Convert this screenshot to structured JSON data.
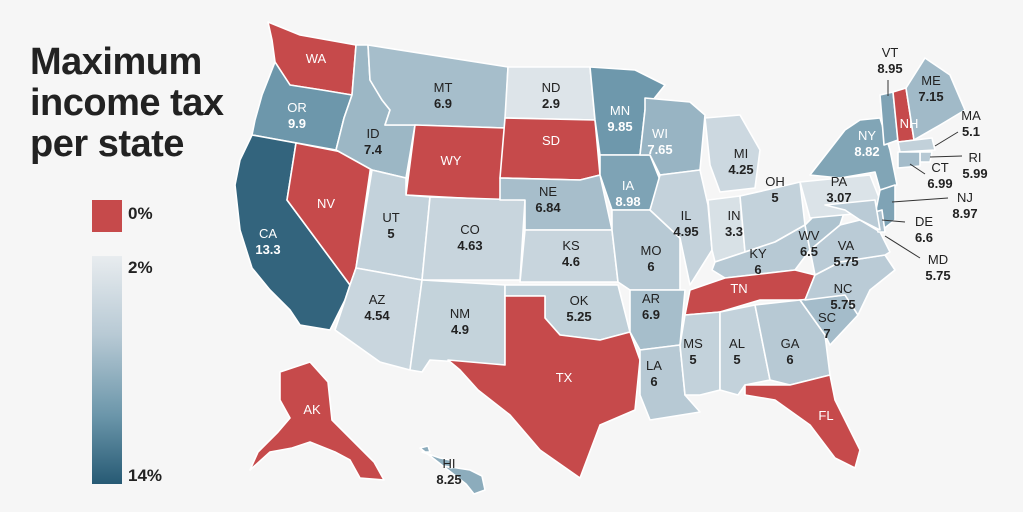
{
  "title": {
    "line1": "Maximum",
    "line2": "income tax",
    "line3": "per state"
  },
  "legend": {
    "zero_label": "0%",
    "min_label": "2%",
    "max_label": "14%",
    "zero_color": "#c64a4b",
    "scale_colors": [
      "#e8ecef",
      "#b7c9d4",
      "#6b96aa",
      "#275a74"
    ]
  },
  "colors": {
    "no_tax": "#c64a4b",
    "background": "#f6f6f6"
  },
  "states": {
    "WA": {
      "abbr": "WA",
      "value": "0"
    },
    "OR": {
      "abbr": "OR",
      "value": "9.9"
    },
    "CA": {
      "abbr": "CA",
      "value": "13.3"
    },
    "NV": {
      "abbr": "NV",
      "value": "0"
    },
    "ID": {
      "abbr": "ID",
      "value": "7.4"
    },
    "MT": {
      "abbr": "MT",
      "value": "6.9"
    },
    "WY": {
      "abbr": "WY",
      "value": "0"
    },
    "UT": {
      "abbr": "UT",
      "value": "5"
    },
    "AZ": {
      "abbr": "AZ",
      "value": "4.54"
    },
    "CO": {
      "abbr": "CO",
      "value": "4.63"
    },
    "NM": {
      "abbr": "NM",
      "value": "4.9"
    },
    "ND": {
      "abbr": "ND",
      "value": "2.9"
    },
    "SD": {
      "abbr": "SD",
      "value": "0"
    },
    "NE": {
      "abbr": "NE",
      "value": "6.84"
    },
    "KS": {
      "abbr": "KS",
      "value": "4.6"
    },
    "OK": {
      "abbr": "OK",
      "value": "5.25"
    },
    "TX": {
      "abbr": "TX",
      "value": "0"
    },
    "MN": {
      "abbr": "MN",
      "value": "9.85"
    },
    "IA": {
      "abbr": "IA",
      "value": "8.98"
    },
    "MO": {
      "abbr": "MO",
      "value": "6"
    },
    "AR": {
      "abbr": "AR",
      "value": "6.9"
    },
    "LA": {
      "abbr": "LA",
      "value": "6"
    },
    "WI": {
      "abbr": "WI",
      "value": "7.65"
    },
    "IL": {
      "abbr": "IL",
      "value": "4.95"
    },
    "MI": {
      "abbr": "MI",
      "value": "4.25"
    },
    "IN": {
      "abbr": "IN",
      "value": "3.3"
    },
    "OH": {
      "abbr": "OH",
      "value": "5"
    },
    "KY": {
      "abbr": "KY",
      "value": "6"
    },
    "TN": {
      "abbr": "TN",
      "value": "0"
    },
    "MS": {
      "abbr": "MS",
      "value": "5"
    },
    "AL": {
      "abbr": "AL",
      "value": "5"
    },
    "GA": {
      "abbr": "GA",
      "value": "6"
    },
    "FL": {
      "abbr": "FL",
      "value": "0"
    },
    "SC": {
      "abbr": "SC",
      "value": "7"
    },
    "NC": {
      "abbr": "NC",
      "value": "5.75"
    },
    "VA": {
      "abbr": "VA",
      "value": "5.75"
    },
    "WV": {
      "abbr": "WV",
      "value": "6.5"
    },
    "PA": {
      "abbr": "PA",
      "value": "3.07"
    },
    "NY": {
      "abbr": "NY",
      "value": "8.82"
    },
    "VT": {
      "abbr": "VT",
      "value": "8.95"
    },
    "NH": {
      "abbr": "NH",
      "value": "0"
    },
    "ME": {
      "abbr": "ME",
      "value": "7.15"
    },
    "MA": {
      "abbr": "MA",
      "value": "5.1"
    },
    "RI": {
      "abbr": "RI",
      "value": "5.99"
    },
    "CT": {
      "abbr": "CT",
      "value": "6.99"
    },
    "NJ": {
      "abbr": "NJ",
      "value": "8.97"
    },
    "DE": {
      "abbr": "DE",
      "value": "6.6"
    },
    "MD": {
      "abbr": "MD",
      "value": "5.75"
    },
    "AK": {
      "abbr": "AK",
      "value": "0"
    },
    "HI": {
      "abbr": "HI",
      "value": "8.25"
    }
  }
}
